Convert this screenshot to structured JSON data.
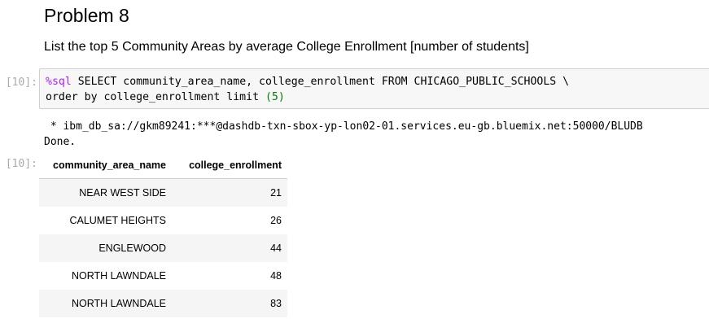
{
  "heading": "Problem 8",
  "subheading": "List the top 5 Community Areas by average College Enrollment [number of students]",
  "input_prompt": "[10]:",
  "output_prompt": "[10]:",
  "code": {
    "magic": "%sql",
    "line1_rest": " SELECT community_area_name, college_enrollment FROM CHICAGO_PUBLIC_SCHOOLS \\",
    "line2_start": "order by college_enrollment limit ",
    "line2_number": "(5)"
  },
  "stdout": {
    "connection_line": " * ibm_db_sa://gkm89241:***@dashdb-txn-sbox-yp-lon02-01.services.eu-gb.bluemix.net:50000/BLUDB",
    "done_line": "Done."
  },
  "result_table": {
    "columns": [
      "community_area_name",
      "college_enrollment"
    ],
    "rows": [
      [
        "NEAR WEST SIDE",
        "21"
      ],
      [
        "CALUMET HEIGHTS",
        "26"
      ],
      [
        "ENGLEWOOD",
        "44"
      ],
      [
        "NORTH LAWNDALE",
        "48"
      ],
      [
        "NORTH LAWNDALE",
        "83"
      ]
    ]
  }
}
